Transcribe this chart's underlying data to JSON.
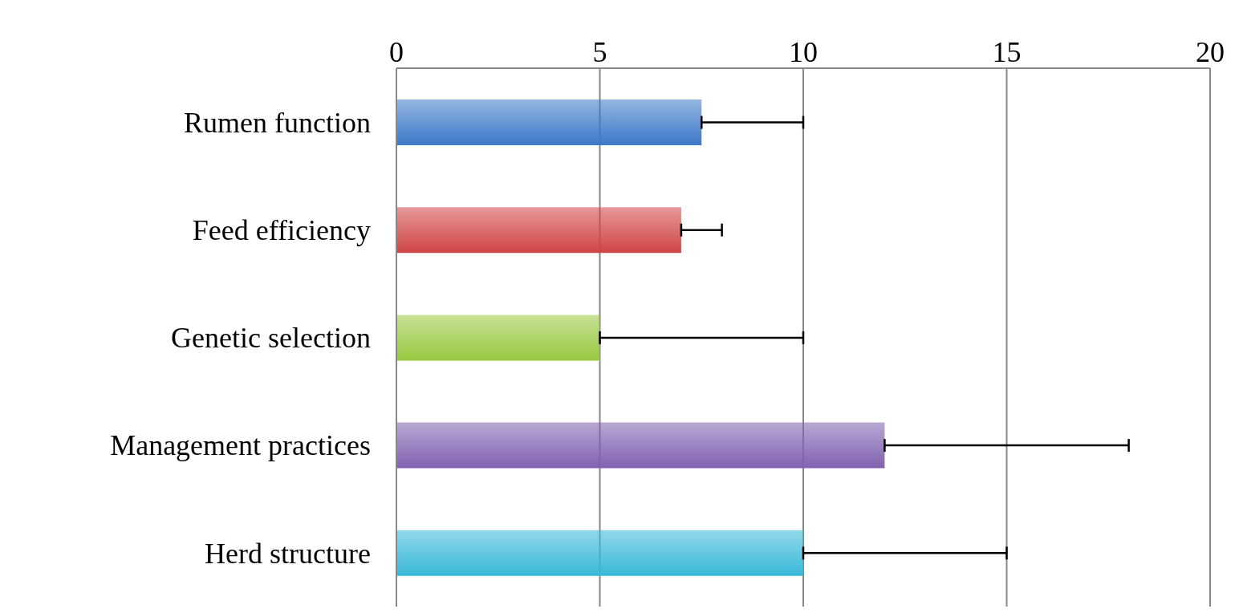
{
  "chart_data": {
    "type": "bar",
    "orientation": "horizontal",
    "categories": [
      "Rumen function",
      "Feed efficiency",
      "Genetic selection",
      "Management practices",
      "Herd structure"
    ],
    "values": [
      7.5,
      7,
      5,
      12,
      10
    ],
    "colors": [
      "#3c78c8",
      "#d04444",
      "#98c840",
      "#8060b0",
      "#38b8d8"
    ],
    "errors": [
      [
        7.5,
        10
      ],
      [
        7,
        8
      ],
      [
        5,
        10
      ],
      [
        12,
        18
      ],
      [
        10,
        15
      ]
    ],
    "xlim": [
      0,
      20
    ],
    "xticks": [
      0,
      5,
      10,
      15,
      20
    ],
    "grid": "x",
    "legend": false
  }
}
